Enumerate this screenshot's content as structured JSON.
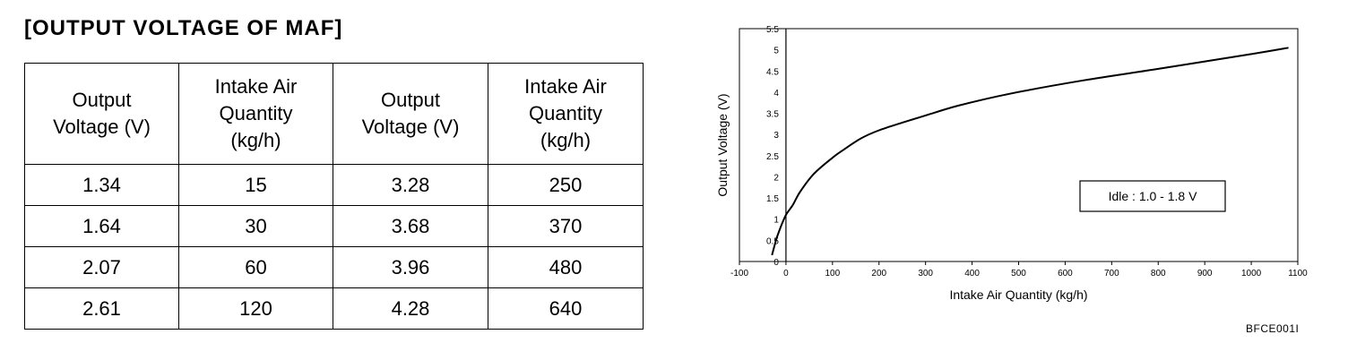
{
  "title": "[OUTPUT VOLTAGE OF MAF]",
  "table": {
    "headers": [
      [
        "Output",
        "Voltage (V)"
      ],
      [
        "Intake Air",
        "Quantity",
        "(kg/h)"
      ],
      [
        "Output",
        "Voltage (V)"
      ],
      [
        "Intake Air",
        "Quantity",
        "(kg/h)"
      ]
    ],
    "rows": [
      [
        "1.34",
        "15",
        "3.28",
        "250"
      ],
      [
        "1.64",
        "30",
        "3.68",
        "370"
      ],
      [
        "2.07",
        "60",
        "3.96",
        "480"
      ],
      [
        "2.61",
        "120",
        "4.28",
        "640"
      ]
    ]
  },
  "chart_data": {
    "type": "line",
    "title": "",
    "xlabel": "Intake Air Quantity (kg/h)",
    "ylabel": "Output Voltage (V)",
    "xlim": [
      -100,
      1100
    ],
    "ylim": [
      0,
      5.5
    ],
    "xticks": [
      -100,
      0,
      100,
      200,
      300,
      400,
      500,
      600,
      700,
      800,
      900,
      1000,
      1100
    ],
    "yticks": [
      0,
      0.5,
      1,
      1.5,
      2,
      2.5,
      3,
      3.5,
      4,
      4.5,
      5,
      5.5
    ],
    "xtick_labels": [
      "-100",
      "0",
      "100",
      "200",
      "300",
      "400",
      "500",
      "600",
      "700",
      "800",
      "900",
      "1000",
      "1100"
    ],
    "ytick_labels": [
      "0",
      "0.5",
      "1",
      "1.5",
      "2",
      "2.5",
      "3",
      "3.5",
      "4",
      "4.5",
      "5",
      "5.5"
    ],
    "grid": false,
    "series": [
      {
        "x": [
          -30,
          -20,
          -10,
          0,
          15,
          30,
          60,
          100,
          120,
          160,
          200,
          250,
          300,
          370,
          480,
          640,
          800,
          1000,
          1080
        ],
        "values": [
          0.15,
          0.55,
          0.85,
          1.1,
          1.34,
          1.64,
          2.07,
          2.45,
          2.61,
          2.9,
          3.1,
          3.28,
          3.45,
          3.68,
          3.96,
          4.28,
          4.55,
          4.9,
          5.05
        ]
      }
    ],
    "annotations": [
      {
        "text": "Idle : 1.0 - 1.8 V",
        "placement": "right-middle boxed"
      }
    ],
    "line_color": "#000000"
  },
  "figure_code": "BFCE001I"
}
